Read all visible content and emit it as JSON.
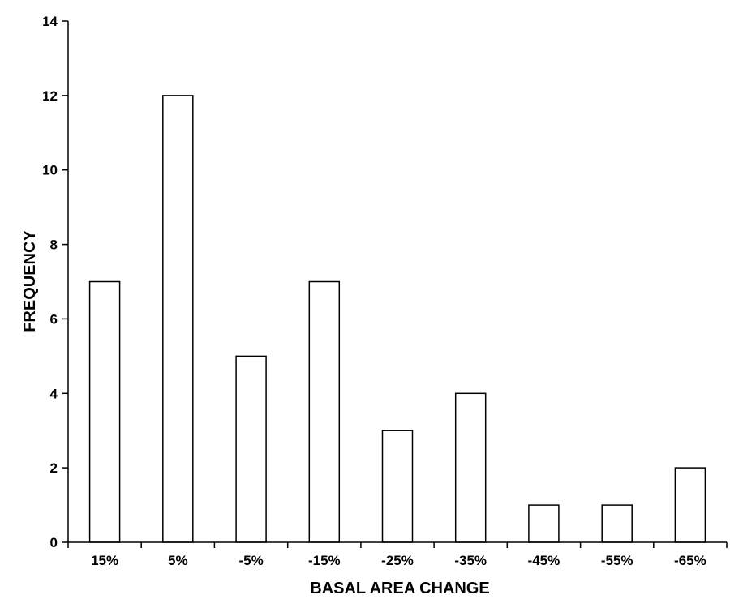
{
  "chart_data": {
    "type": "bar",
    "title": "",
    "xlabel": "BASAL AREA CHANGE",
    "ylabel": "FREQUENCY",
    "categories": [
      "15%",
      "5%",
      "-5%",
      "-15%",
      "-25%",
      "-35%",
      "-45%",
      "-55%",
      "-65%"
    ],
    "values": [
      7,
      12,
      5,
      7,
      3,
      4,
      1,
      1,
      2
    ],
    "ylim": [
      0,
      14
    ],
    "yticks": [
      0,
      2,
      4,
      6,
      8,
      10,
      12,
      14
    ],
    "grid": false,
    "legend": "none",
    "bar_fill": "#ffffff",
    "bar_stroke": "#000000"
  }
}
